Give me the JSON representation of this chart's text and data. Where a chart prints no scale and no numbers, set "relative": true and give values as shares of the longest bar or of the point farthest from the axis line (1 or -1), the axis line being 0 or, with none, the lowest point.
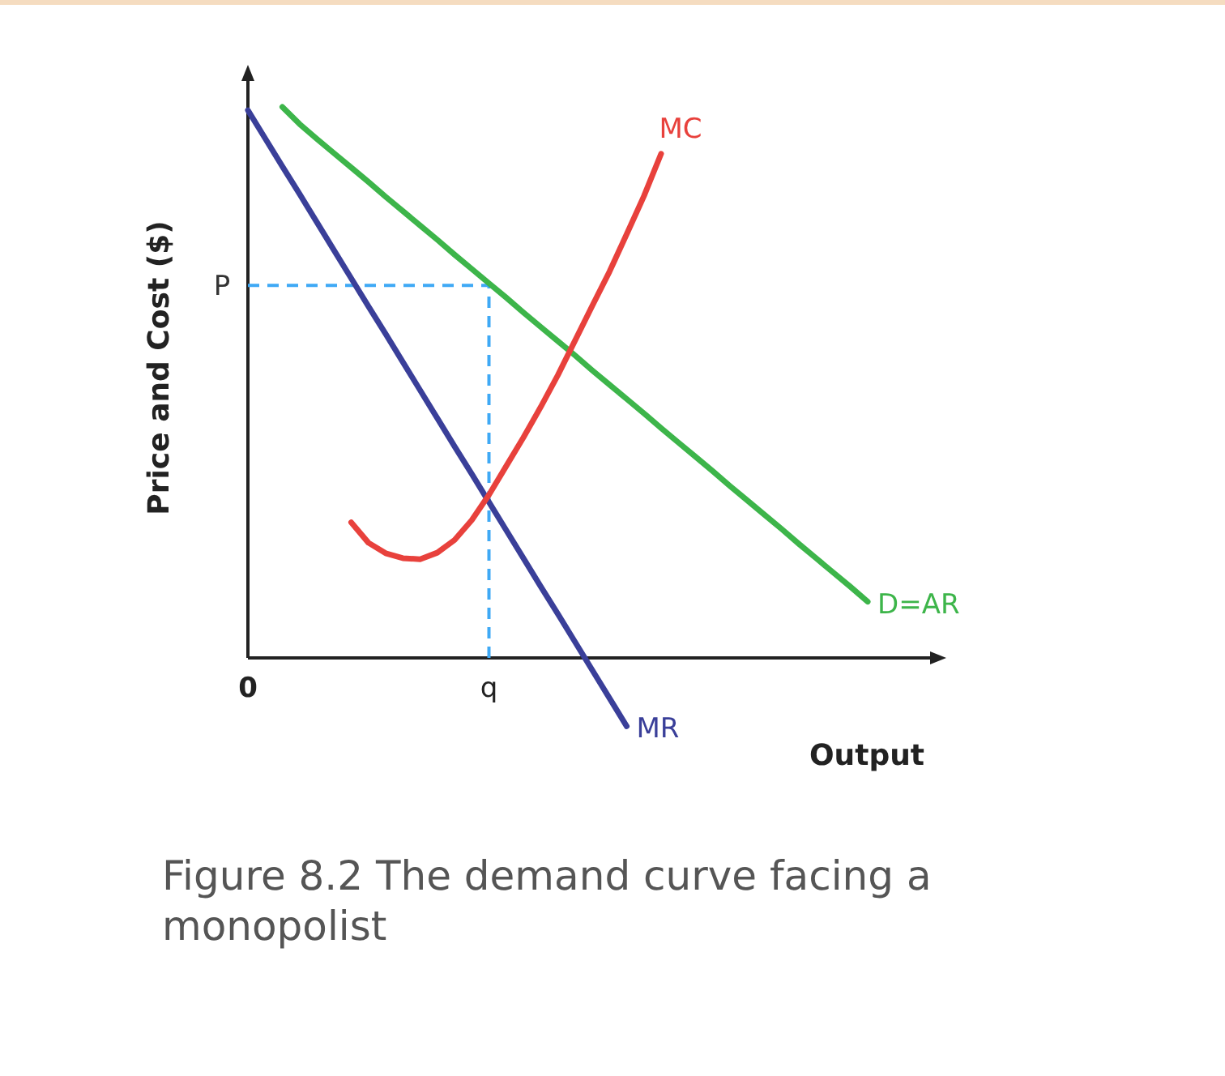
{
  "chart_data": {
    "type": "line",
    "relative": true,
    "title": "Figure 8.2 The demand curve facing a monopolist",
    "xlabel": "Output",
    "ylabel": "Price and Cost ($)",
    "categories": [
      "0",
      null,
      null,
      null,
      null,
      null,
      null,
      null,
      null,
      null,
      null,
      null,
      null,
      null,
      "q",
      null,
      null,
      null,
      null,
      null,
      null,
      null,
      null,
      null,
      null,
      null,
      null,
      null,
      null,
      null,
      null,
      null,
      null,
      null,
      null,
      null,
      null,
      null,
      null,
      null,
      null
    ],
    "series": [
      {
        "name": "D=AR",
        "color": "#3db54a",
        "values": [
          null,
          null,
          1,
          0.969,
          0.942,
          0.916,
          0.89,
          0.864,
          0.837,
          0.811,
          0.785,
          0.759,
          0.732,
          0.706,
          0.68,
          0.654,
          0.627,
          0.601,
          0.575,
          0.549,
          0.522,
          0.496,
          0.47,
          0.444,
          0.417,
          0.391,
          0.365,
          0.339,
          0.312,
          0.286,
          0.26,
          0.234,
          0.207,
          0.181,
          0.155,
          0.129,
          0.102,
          null,
          null,
          null,
          null
        ]
      },
      {
        "name": "MR",
        "color": "#3a3f99",
        "values": [
          0.994,
          0.943,
          0.892,
          0.842,
          0.791,
          0.74,
          0.689,
          0.638,
          0.588,
          0.537,
          0.486,
          0.435,
          0.384,
          0.334,
          0.283,
          0.232,
          0.181,
          0.13,
          0.08,
          0.029,
          -0.022,
          -0.073,
          -0.124,
          null,
          null,
          null,
          null,
          null,
          null,
          null,
          null,
          null,
          null,
          null,
          null,
          null,
          null,
          null,
          null,
          null,
          null
        ]
      },
      {
        "name": "MC",
        "color": "#e8413c",
        "values": [
          null,
          null,
          null,
          null,
          null,
          null,
          0.246,
          0.209,
          0.19,
          0.181,
          0.179,
          0.191,
          0.214,
          0.25,
          0.296,
          0.348,
          0.4,
          0.455,
          0.513,
          0.576,
          0.639,
          0.701,
          0.769,
          0.838,
          0.915,
          null,
          null,
          null,
          null,
          null,
          null,
          null,
          null,
          null,
          null,
          null,
          null,
          null,
          null,
          null,
          null
        ]
      }
    ],
    "ref_lines": [
      {
        "axis": "y",
        "value": 0.676,
        "label": "P",
        "color": "#3fa9f5",
        "line_style": "dashed"
      },
      {
        "axis": "x",
        "value": "q",
        "color": "#3fa9f5",
        "line_style": "dashed"
      }
    ]
  }
}
